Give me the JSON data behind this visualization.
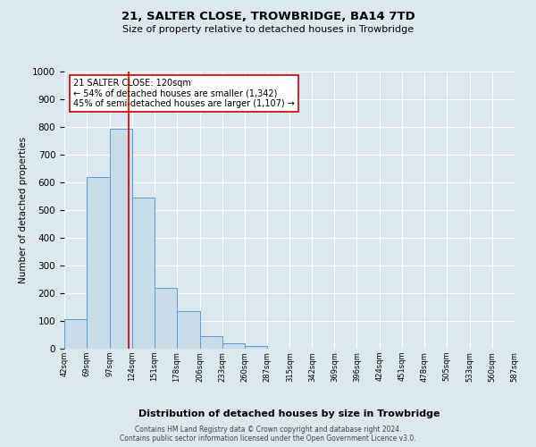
{
  "title_line1": "21, SALTER CLOSE, TROWBRIDGE, BA14 7TD",
  "title_line2": "Size of property relative to detached houses in Trowbridge",
  "xlabel": "Distribution of detached houses by size in Trowbridge",
  "ylabel": "Number of detached properties",
  "bin_edges": [
    42,
    69,
    97,
    124,
    151,
    178,
    206,
    233,
    260,
    287,
    315,
    342,
    369,
    396,
    424,
    451,
    478,
    505,
    533,
    560,
    587
  ],
  "bar_heights": [
    105,
    620,
    795,
    545,
    220,
    135,
    45,
    20,
    10,
    0,
    0,
    0,
    0,
    0,
    0,
    0,
    0,
    0,
    0,
    0
  ],
  "bar_color": "#c9dcea",
  "bar_edge_color": "#5b9bd5",
  "property_size": 120,
  "vline_color": "#cc0000",
  "annotation_line1": "21 SALTER CLOSE: 120sqm",
  "annotation_line2": "← 54% of detached houses are smaller (1,342)",
  "annotation_line3": "45% of semi-detached houses are larger (1,107) →",
  "annotation_box_color": "#ffffff",
  "annotation_box_edge_color": "#cc0000",
  "ylim": [
    0,
    1000
  ],
  "yticks": [
    0,
    100,
    200,
    300,
    400,
    500,
    600,
    700,
    800,
    900,
    1000
  ],
  "tick_labels": [
    "42sqm",
    "69sqm",
    "97sqm",
    "124sqm",
    "151sqm",
    "178sqm",
    "206sqm",
    "233sqm",
    "260sqm",
    "287sqm",
    "315sqm",
    "342sqm",
    "369sqm",
    "396sqm",
    "424sqm",
    "451sqm",
    "478sqm",
    "505sqm",
    "533sqm",
    "560sqm",
    "587sqm"
  ],
  "footer_line1": "Contains HM Land Registry data © Crown copyright and database right 2024.",
  "footer_line2": "Contains public sector information licensed under the Open Government Licence v3.0.",
  "background_color": "#dce8f0",
  "plot_bg_color": "#dce8f0"
}
